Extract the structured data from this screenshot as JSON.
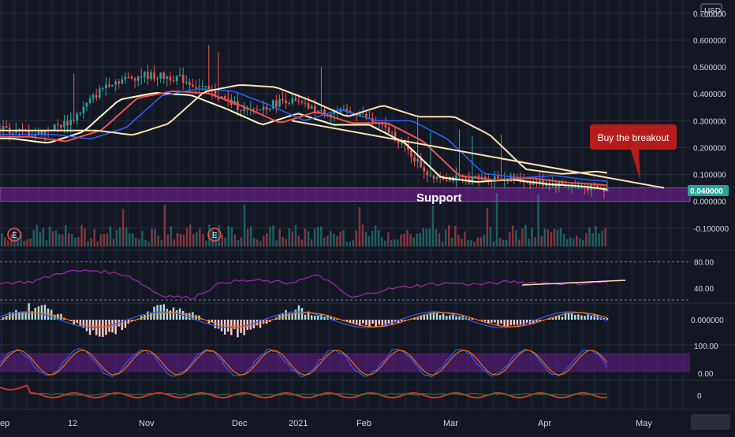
{
  "currency_label": "USD",
  "colors": {
    "background": "#131722",
    "up": "#26a69a",
    "down": "#ef5350",
    "ma_fast": "#fff9c4",
    "ma_mid": "#ef5350",
    "ma_slow": "#2962ff",
    "ma_long": "#ffe0b2",
    "support_zone": "#7b1fa2",
    "callout_bg": "#b71c1c",
    "rsi_line": "#9c27b0",
    "trend_line": "#ffe0b2"
  },
  "annotations": {
    "callout": "Buy the breakout",
    "support": "Support",
    "earnings_marker": "E"
  },
  "price_badge": "0.040000",
  "x_axis": [
    "ep",
    "12",
    "Nov",
    "Dec",
    "2021",
    "Feb",
    "Mar",
    "Apr",
    "May"
  ],
  "chart_data": [
    {
      "type": "candlestick",
      "title": "",
      "ylim": [
        -0.13,
        0.72
      ],
      "y_ticks": [
        "0.700000",
        "0.600000",
        "0.500000",
        "0.400000",
        "0.300000",
        "0.200000",
        "0.100000",
        "0.000000",
        "-0.100000"
      ],
      "support_zone": [
        0.0,
        0.05
      ],
      "approx_close_path": [
        0.27,
        0.25,
        0.3,
        0.44,
        0.47,
        0.46,
        0.4,
        0.33,
        0.38,
        0.33,
        0.33,
        0.25,
        0.1,
        0.08,
        0.09,
        0.07,
        0.06,
        0.04
      ],
      "trend_line": [
        0.3,
        0.05
      ]
    },
    {
      "type": "line",
      "title": "",
      "ylim": [
        20,
        95
      ],
      "y_ticks": [
        "80.00",
        "40.00"
      ],
      "bands": [
        80,
        20
      ],
      "approx_values": [
        48,
        50,
        65,
        67,
        60,
        30,
        25,
        50,
        52,
        48,
        60,
        25,
        38,
        44,
        48,
        46,
        50,
        48,
        47,
        50
      ]
    },
    {
      "type": "bar",
      "title": "",
      "y_ticks": [
        "0.000000"
      ]
    },
    {
      "type": "line",
      "title": "",
      "ylim": [
        0,
        100
      ],
      "y_ticks": [
        "100.00",
        "0.00"
      ],
      "band": [
        20,
        80
      ]
    },
    {
      "type": "line",
      "title": "",
      "y_ticks": [
        "0"
      ]
    }
  ]
}
